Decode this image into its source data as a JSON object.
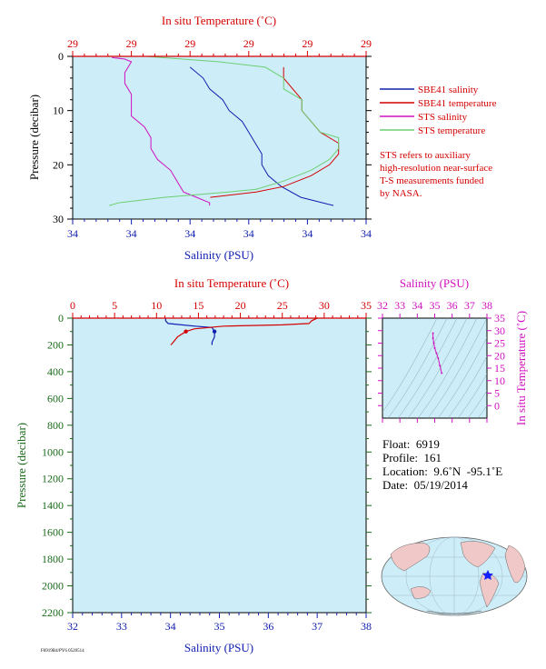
{
  "colors": {
    "panel_bg": "#cdeef8",
    "salinity": "#1020b0",
    "temperature": "#d40000",
    "sts_salinity": "#d010c0",
    "sts_temperature": "#6ccf72",
    "pressure_axis": "#1a6a1a"
  },
  "top_chart": {
    "temp_label": "In situ Temperature (˚C)",
    "sal_label": "Salinity (PSU)",
    "pres_label": "Pressure (decibar)",
    "temp_ticks": [
      "29",
      "29",
      "29",
      "29",
      "29",
      "29"
    ],
    "sal_ticks": [
      "34",
      "34",
      "34",
      "34",
      "34",
      "34"
    ],
    "pres_ticks": [
      "0",
      "10",
      "20",
      "30"
    ],
    "legend": [
      {
        "name": "SBE41 salinity",
        "color": "#1020b0"
      },
      {
        "name": "SBE41 temperature",
        "color": "#d40000"
      },
      {
        "name": "STS salinity",
        "color": "#d010c0"
      },
      {
        "name": "STS temperature",
        "color": "#6ccf72"
      }
    ],
    "note": [
      "STS refers to auxiliary",
      "high-resolution near-surface",
      "T-S measurements funded",
      "by NASA."
    ]
  },
  "bottom_chart": {
    "temp_label": "In situ Temperature (˚C)",
    "sal_label": "Salinity (PSU)",
    "pres_label": "Pressure (decibar)",
    "temp_ticks": [
      "0",
      "5",
      "10",
      "15",
      "20",
      "25",
      "30",
      "35"
    ],
    "sal_ticks": [
      "32",
      "33",
      "34",
      "35",
      "36",
      "37",
      "38"
    ],
    "pres_ticks": [
      "0",
      "200",
      "400",
      "600",
      "800",
      "1000",
      "1200",
      "1400",
      "1600",
      "1800",
      "2000",
      "2200"
    ]
  },
  "ts_diagram": {
    "sal_label": "Salinity (PSU)",
    "temp_label": "In situ Temperature (˚C)",
    "sal_ticks": [
      "32",
      "33",
      "34",
      "35",
      "36",
      "37",
      "38"
    ],
    "temp_ticks": [
      "0",
      "5",
      "10",
      "15",
      "20",
      "25",
      "30",
      "35"
    ]
  },
  "info": {
    "float": "Float:  6919",
    "profile": "Profile:  161",
    "location": "Location:  9.6˚N  -95.1˚E",
    "date": "Date:  05/19/2014"
  },
  "footer_code": "F6919B4/PY6 0520514",
  "chart_data": [
    {
      "type": "line",
      "panel": "top",
      "title": "",
      "xlabel": "Salinity (PSU)",
      "x2label": "In situ Temperature (˚C)",
      "ylabel": "Pressure (decibar)",
      "ylim": [
        30,
        0
      ],
      "series": [
        {
          "name": "SBE41 salinity",
          "pressure": [
            2,
            4,
            6,
            8,
            10,
            12,
            14,
            16,
            18,
            20,
            22,
            24,
            26,
            27.5
          ],
          "salinity": [
            33.98,
            34.0,
            34.01,
            34.03,
            34.04,
            34.06,
            34.07,
            34.08,
            34.09,
            34.09,
            34.1,
            34.12,
            34.15,
            34.2
          ]
        },
        {
          "name": "SBE41 temperature",
          "pressure": [
            2,
            4,
            6,
            8,
            10,
            12,
            14,
            16,
            18,
            20,
            22,
            24,
            25,
            26
          ],
          "temperature": [
            29.03,
            29.03,
            29.04,
            29.05,
            29.05,
            29.06,
            29.07,
            29.09,
            29.09,
            29.08,
            29.06,
            29.03,
            29.0,
            28.95
          ]
        },
        {
          "name": "STS salinity",
          "pressure": [
            0.2,
            0.5,
            1,
            3,
            5,
            7,
            9,
            11,
            13,
            15,
            17,
            19,
            21,
            23,
            25,
            26,
            27,
            27.5
          ],
          "salinity": [
            33.86,
            33.88,
            33.89,
            33.88,
            33.88,
            33.89,
            33.89,
            33.89,
            33.91,
            33.92,
            33.92,
            33.93,
            33.95,
            33.96,
            33.97,
            33.99,
            34.01,
            34.01
          ]
        },
        {
          "name": "STS temperature",
          "pressure": [
            0,
            0.5,
            1,
            2,
            4,
            6,
            8,
            10,
            12,
            14,
            15,
            17,
            19,
            21,
            23,
            24.5,
            25,
            26,
            27,
            27.5
          ],
          "temperature": [
            28.88,
            28.92,
            28.96,
            29.01,
            29.03,
            29.03,
            29.05,
            29.05,
            29.06,
            29.07,
            29.09,
            29.09,
            29.08,
            29.06,
            29.03,
            29.0,
            28.97,
            28.9,
            28.85,
            28.84
          ]
        }
      ]
    },
    {
      "type": "line",
      "panel": "bottom",
      "title": "",
      "xlabel": "Salinity (PSU)",
      "x2label": "In situ Temperature (˚C)",
      "ylabel": "Pressure (decibar)",
      "xlim": [
        32,
        38
      ],
      "x2lim": [
        0,
        35
      ],
      "ylim": [
        2200,
        0
      ],
      "series": [
        {
          "name": "SBE41 salinity",
          "pressure": [
            0,
            5,
            20,
            40,
            60,
            70,
            100,
            140,
            180,
            200
          ],
          "salinity": [
            33.9,
            33.9,
            33.9,
            33.95,
            34.5,
            34.85,
            34.9,
            34.9,
            34.85,
            34.85
          ]
        },
        {
          "name": "SBE41 temperature",
          "pressure": [
            0,
            5,
            20,
            40,
            50,
            60,
            80,
            100,
            140,
            180,
            200
          ],
          "temperature": [
            29.2,
            29.0,
            28.5,
            28.2,
            25.0,
            18.0,
            14.5,
            13.5,
            12.5,
            12.0,
            11.7
          ]
        }
      ]
    },
    {
      "type": "scatter",
      "panel": "ts_diagram",
      "xlabel": "Salinity (PSU)",
      "ylabel": "In situ Temperature (˚C)",
      "xlim": [
        32,
        38
      ],
      "ylim": [
        -5,
        35
      ],
      "series": [
        {
          "name": "T-S profile",
          "salinity": [
            34.9,
            34.9,
            34.95,
            35.0,
            35.1,
            35.2,
            35.3,
            35.4
          ],
          "temperature": [
            29.0,
            27.0,
            25.0,
            23.0,
            21.0,
            19.0,
            16.0,
            13.0
          ]
        }
      ]
    }
  ]
}
